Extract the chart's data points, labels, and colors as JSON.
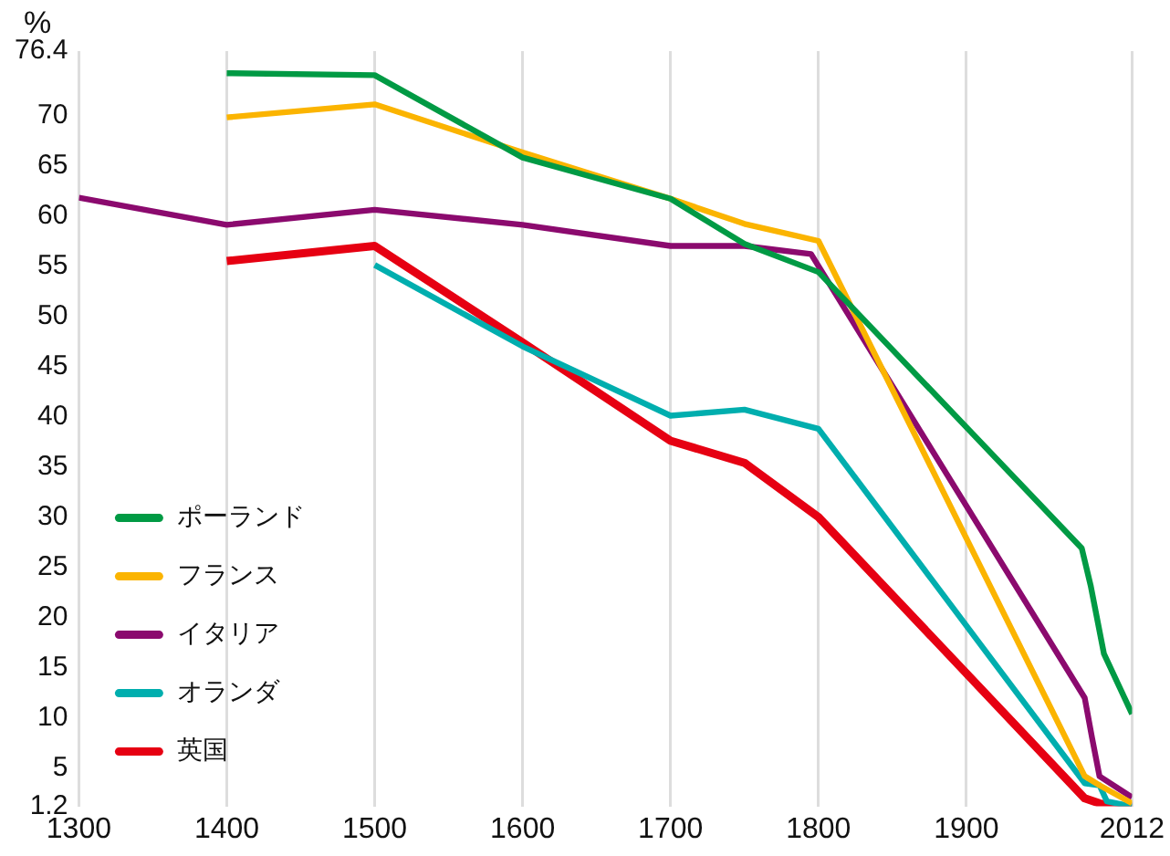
{
  "chart_data": {
    "type": "line",
    "ylabel": "%",
    "xlim": [
      1300,
      2012
    ],
    "xticks": [
      1300,
      1400,
      1500,
      1600,
      1700,
      1800,
      1900,
      2012
    ],
    "ylim": [
      1.2,
      76.4
    ],
    "yticks": [
      1.2,
      5,
      10,
      15,
      20,
      25,
      30,
      35,
      40,
      45,
      50,
      55,
      60,
      65,
      70,
      76.4
    ],
    "grid": "x",
    "legend": "bottom left",
    "marker": "none",
    "line_style": "solid",
    "series": [
      {
        "name": "ポーランド",
        "color": "#009a44",
        "x": [
          1400,
          1500,
          1600,
          1700,
          1750,
          1800,
          1978,
          1984,
          1993,
          2012
        ],
        "values": [
          74.2,
          74,
          65.8,
          61.7,
          57.2,
          54.4,
          26.9,
          23.2,
          16.4,
          10.4
        ]
      },
      {
        "name": "フランス",
        "color": "#fbb400",
        "x": [
          1400,
          1500,
          1600,
          1700,
          1750,
          1800,
          1980,
          1990,
          2012
        ],
        "values": [
          69.8,
          71.1,
          66.3,
          61.7,
          59.2,
          57.5,
          4.2,
          3.3,
          1.5
        ]
      },
      {
        "name": "イタリア",
        "color": "#8b0a6e",
        "x": [
          1300,
          1400,
          1500,
          1600,
          1700,
          1750,
          1795,
          1980,
          1985,
          1990,
          2012
        ],
        "values": [
          61.8,
          59.1,
          60.6,
          59.1,
          57,
          57,
          56.2,
          12,
          8,
          4.2,
          2.1
        ]
      },
      {
        "name": "オランダ",
        "color": "#00aeae",
        "x": [
          1500,
          1600,
          1700,
          1750,
          1800,
          1980,
          1990,
          1995,
          2012
        ],
        "values": [
          55.1,
          47,
          40.1,
          40.7,
          38.8,
          3.5,
          3.3,
          1.7,
          1.2
        ]
      },
      {
        "name": "英国",
        "color": "#e60012",
        "x": [
          1400,
          1500,
          1600,
          1700,
          1750,
          1800,
          1980,
          1990,
          2000,
          2012
        ],
        "values": [
          55.5,
          57,
          47.4,
          37.6,
          35.4,
          30,
          2,
          1.5,
          1.2,
          1.2
        ]
      }
    ]
  }
}
